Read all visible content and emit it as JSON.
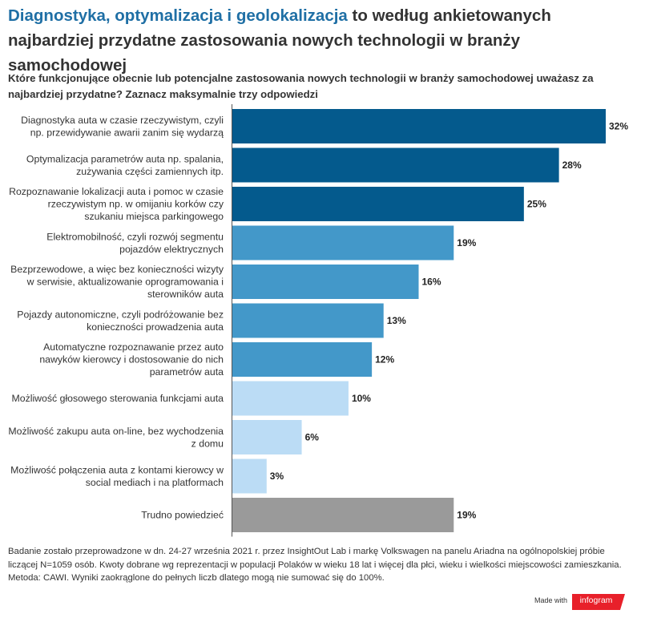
{
  "header": {
    "title_highlight": "Diagnostyka, optymalizacja i geolokalizacja",
    "title_rest": " to według ankietowanych najbardziej przydatne zastosowania nowych technologii w branży samochodowej",
    "subtitle": "Które funkcjonujące obecnie lub potencjalne zastosowania nowych technologii w branży samochodowej uważasz za najbardziej przydatne? Zaznacz maksymalnie trzy odpowiedzi"
  },
  "chart_data": {
    "type": "bar",
    "orientation": "horizontal",
    "value_suffix": "%",
    "xlim": [
      0,
      32
    ],
    "grid": false,
    "legend": "none",
    "categories": [
      [
        "Diagnostyka auta w czasie rzeczywistym, czyli",
        "np. przewidywanie awarii zanim się wydarzą"
      ],
      [
        "Optymalizacja parametrów auta np. spalania,",
        "zużywania części zamiennych itp."
      ],
      [
        "Rozpoznawanie lokalizacji auta i pomoc w czasie",
        "rzeczywistym np. w omijaniu korków czy",
        "szukaniu miejsca parkingowego"
      ],
      [
        "Elektromobilność, czyli rozwój segmentu",
        "pojazdów elektrycznych"
      ],
      [
        "Bezprzewodowe, a więc bez konieczności wizyty",
        "w serwisie, aktualizowanie oprogramowania i",
        "sterowników auta"
      ],
      [
        "Pojazdy autonomiczne, czyli podróżowanie bez",
        "konieczności prowadzenia auta"
      ],
      [
        "Automatyczne rozpoznawanie przez auto",
        "nawyków kierowcy i dostosowanie do nich",
        "parametrów auta"
      ],
      [
        "Możliwość głosowego sterowania funkcjami auta"
      ],
      [
        "Możliwość zakupu auta on-line, bez wychodzenia",
        "z domu"
      ],
      [
        "Możliwość połączenia auta z kontami kierowcy w",
        "social mediach i na platformach"
      ],
      [
        "Trudno powiedzieć"
      ]
    ],
    "values": [
      32,
      28,
      25,
      19,
      16,
      13,
      12,
      10,
      6,
      3,
      19
    ],
    "colors": [
      "#045a8d",
      "#045a8d",
      "#045a8d",
      "#4398c9",
      "#4398c9",
      "#4398c9",
      "#4398c9",
      "#bbdcf5",
      "#bbdcf5",
      "#bbdcf5",
      "#9a9a9a"
    ]
  },
  "footer": {
    "note": "Badanie zostało przeprowadzone w dn. 24-27 września 2021 r. przez InsightOut Lab i markę Volkswagen na panelu Ariadna na ogólnopolskiej próbie liczącej N=1059 osób. Kwoty dobrane wg reprezentacji w populacji Polaków w wieku 18 lat i więcej dla płci, wieku i wielkości miejscowości zamieszkania. Metoda: CAWI. Wyniki zaokrąglone do pełnych liczb dlatego mogą nie sumować się do 100%.",
    "made_with": "Made with",
    "brand": "infogram",
    "brand_color": "#e8202a"
  }
}
